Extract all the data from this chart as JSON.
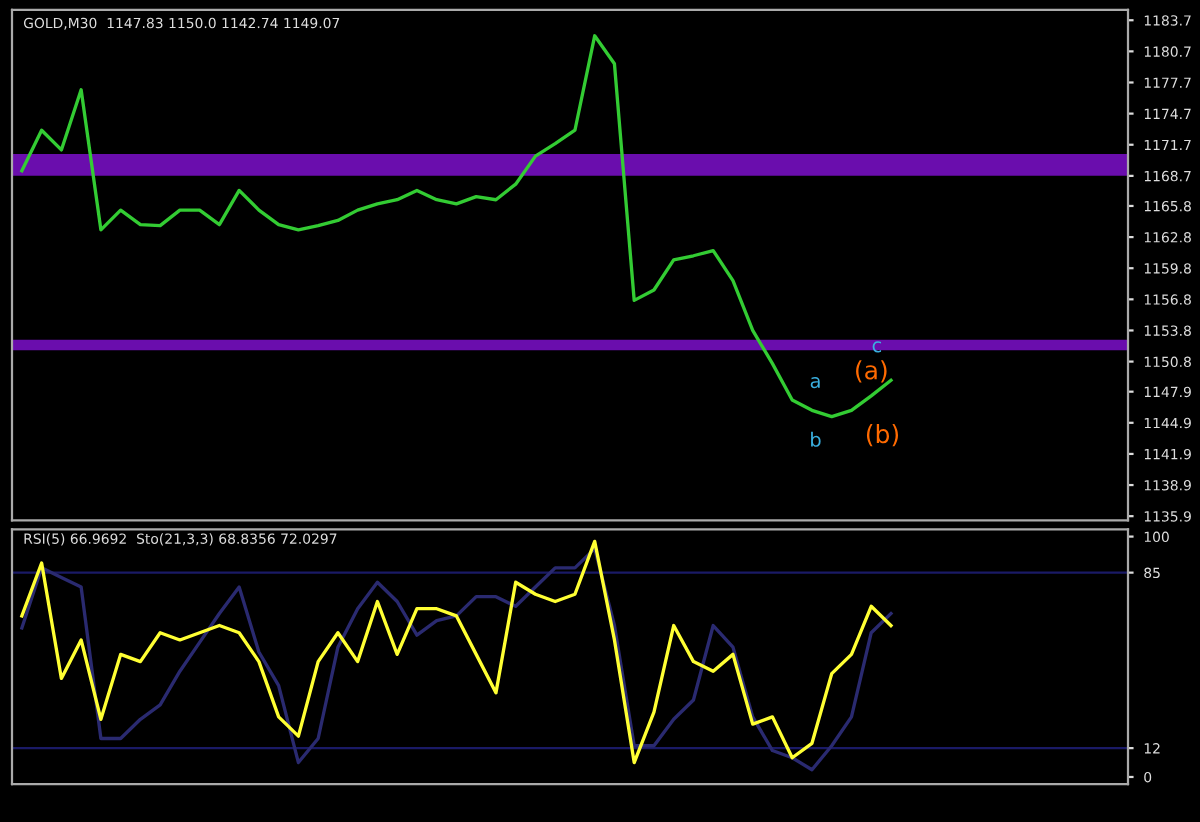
{
  "chart_data": [
    {
      "type": "line",
      "title": "GOLD,M30  1147.83 1150.0 1142.74 1149.07",
      "categories": [
        null,
        null,
        null,
        null,
        null,
        null,
        null,
        null,
        null,
        null,
        null,
        null,
        null,
        null,
        null,
        null,
        null,
        null,
        null,
        null,
        null,
        null,
        null,
        null,
        null,
        null,
        null,
        null,
        null,
        null,
        null,
        null,
        null,
        null,
        null,
        null,
        null,
        null,
        null,
        null,
        null,
        null,
        null,
        null,
        null,
        null,
        null,
        null,
        null,
        null,
        null,
        null,
        null,
        null,
        null,
        null,
        null
      ],
      "series": [
        {
          "color": "#33cc33",
          "values": [
            1169.2,
            1173.1,
            1171.2,
            1177.0,
            1163.5,
            1165.4,
            1164.0,
            1163.9,
            1165.4,
            1165.4,
            1164.0,
            1167.3,
            1165.4,
            1164.0,
            1163.5,
            1163.9,
            1164.4,
            1165.4,
            1166.0,
            1166.4,
            1167.3,
            1166.4,
            1166.0,
            1166.7,
            1166.4,
            1167.9,
            1170.6,
            1171.8,
            1173.1,
            1182.2,
            1179.5,
            1156.7,
            1157.7,
            1160.6,
            1161.0,
            1161.5,
            1158.6,
            1153.8,
            1150.6,
            1147.1,
            1146.1,
            1145.5,
            1146.1,
            1147.5,
            1149.0,
            null,
            null,
            null,
            null,
            null,
            null,
            null,
            null,
            null,
            null,
            null,
            null
          ]
        }
      ],
      "ylim": [
        1135.5,
        1184.7
      ],
      "yticks": [
        1183.7,
        1180.7,
        1177.7,
        1174.7,
        1171.7,
        1168.7,
        1165.8,
        1162.8,
        1159.8,
        1156.8,
        1153.8,
        1150.8,
        1147.9,
        1144.9,
        1141.9,
        1138.9,
        1135.9
      ],
      "bands": [
        {
          "axis": "y",
          "from": 1168.7,
          "to": 1170.8,
          "color": "#6a0dad"
        },
        {
          "axis": "y",
          "from": 1151.9,
          "to": 1152.9,
          "color": "#6a0dad"
        }
      ],
      "annotations": [
        "(a)",
        "(b)",
        "a",
        "b",
        "c"
      ],
      "tick_labels": "y",
      "grid": false
    },
    {
      "type": "line",
      "title": "RSI(5) 66.9692  Sto(21,3,3) 68.8356 72.0297",
      "categories": [
        null,
        null,
        null,
        null,
        null,
        null,
        null,
        null,
        null,
        null,
        null,
        null,
        null,
        null,
        null,
        null,
        null,
        null,
        null,
        null,
        null,
        null,
        null,
        null,
        null,
        null,
        null,
        null,
        null,
        null,
        null,
        null,
        null,
        null,
        null,
        null,
        null,
        null,
        null,
        null,
        null,
        null,
        null,
        null,
        null,
        null,
        null,
        null,
        null,
        null,
        null,
        null,
        null,
        null,
        null,
        null,
        null
      ],
      "series": [
        {
          "color": "#2a2a70",
          "values": [
            62,
            87,
            83,
            79,
            16,
            16,
            24,
            30,
            44,
            56,
            68,
            79,
            52,
            38,
            6,
            16,
            54,
            70,
            81,
            73,
            59,
            65,
            67,
            75,
            75,
            71,
            79,
            87,
            87,
            95,
            63,
            13,
            13,
            24,
            32,
            63,
            54,
            25,
            11,
            8,
            3,
            13,
            25,
            60,
            68,
            null,
            null,
            null,
            null,
            null,
            null,
            null,
            null,
            null,
            null,
            null,
            null
          ]
        },
        {
          "color": "#ffff33",
          "values": [
            67,
            89,
            41,
            57,
            24,
            51,
            48,
            60,
            57,
            60,
            63,
            60,
            48,
            25,
            17,
            48,
            60,
            48,
            73,
            51,
            70,
            70,
            67,
            51,
            35,
            81,
            76,
            73,
            76,
            98,
            57,
            6,
            27,
            63,
            48,
            44,
            51,
            22,
            25,
            8,
            14,
            43,
            51,
            71,
            63,
            null,
            null,
            null,
            null,
            null,
            null,
            null,
            null,
            null,
            null,
            null,
            null
          ]
        }
      ],
      "ylim": [
        -3,
        103
      ],
      "yticks": [
        100,
        85,
        12,
        0
      ],
      "ref_lines": [
        {
          "axis": "y",
          "value": 85,
          "color": "#1a1a66"
        },
        {
          "axis": "y",
          "value": 12,
          "color": "#1a1a66"
        }
      ],
      "tick_labels": "y",
      "grid": false
    }
  ]
}
